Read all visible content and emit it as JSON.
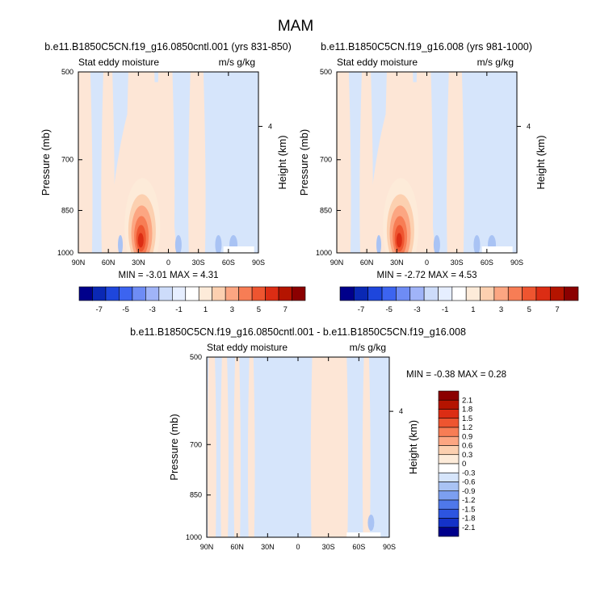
{
  "figure_title": "MAM",
  "chart_data": [
    {
      "type": "heatmap",
      "title": "b.e11.B1850C5CN.f19_g16.0850cntl.001 (yrs 831-850)",
      "left_subtitle": "Stat eddy moisture",
      "right_subtitle": "m/s g/kg",
      "xlabel": "",
      "ylabel": "Pressure (mb)",
      "ylabel_right": "Height (km)",
      "x_ticks": [
        "90N",
        "60N",
        "30N",
        "0",
        "30S",
        "60S",
        "90S"
      ],
      "y_ticks": [
        "500",
        "700",
        "850",
        "1000"
      ],
      "y_right_ticks": [
        "4"
      ],
      "ylim": [
        500,
        1000
      ],
      "stats": "MIN =  -3.01  MAX =   4.31",
      "peak": {
        "lat": 26,
        "pressure": 950,
        "value": 4.31
      },
      "colorbar_labels": [
        "-7",
        "-5",
        "-3",
        "-1",
        "1",
        "3",
        "5",
        "7"
      ]
    },
    {
      "type": "heatmap",
      "title": "b.e11.B1850C5CN.f19_g16.008 (yrs 981-1000)",
      "left_subtitle": "Stat eddy moisture",
      "right_subtitle": "m/s g/kg",
      "xlabel": "",
      "ylabel": "Pressure (mb)",
      "ylabel_right": "Height (km)",
      "x_ticks": [
        "90N",
        "60N",
        "30N",
        "0",
        "30S",
        "60S",
        "90S"
      ],
      "y_ticks": [
        "500",
        "700",
        "850",
        "1000"
      ],
      "y_right_ticks": [
        "4"
      ],
      "ylim": [
        500,
        1000
      ],
      "stats": "MIN =  -2.72  MAX =   4.53",
      "peak": {
        "lat": 26,
        "pressure": 950,
        "value": 4.53
      },
      "colorbar_labels": [
        "-7",
        "-5",
        "-3",
        "-1",
        "1",
        "3",
        "5",
        "7"
      ]
    },
    {
      "type": "heatmap",
      "title": "b.e11.B1850C5CN.f19_g16.0850cntl.001 - b.e11.B1850C5CN.f19_g16.008",
      "left_subtitle": "Stat eddy moisture",
      "right_subtitle": "m/s g/kg",
      "xlabel": "",
      "ylabel": "Pressure (mb)",
      "ylabel_right": "Height (km)",
      "x_ticks": [
        "90N",
        "60N",
        "30N",
        "0",
        "30S",
        "60S",
        "90S"
      ],
      "y_ticks": [
        "500",
        "700",
        "850",
        "1000"
      ],
      "y_right_ticks": [
        "4"
      ],
      "ylim": [
        500,
        1000
      ],
      "stats": "MIN =  -0.38  MAX =   0.28",
      "colorbar_labels": [
        "2.1",
        "1.8",
        "1.5",
        "1.2",
        "0.9",
        "0.6",
        "0.3",
        "0",
        "-0.3",
        "-0.6",
        "-0.9",
        "-1.2",
        "-1.5",
        "-1.8",
        "-2.1"
      ]
    }
  ],
  "colors": {
    "scale": [
      "#00008b",
      "#0a28b4",
      "#1e46dc",
      "#3c64f0",
      "#6e8cf5",
      "#a0b4f8",
      "#cddcfa",
      "#e6eeff",
      "#ffffff",
      "#fdebd9",
      "#fcd0b0",
      "#fca682",
      "#f77d55",
      "#ee5530",
      "#dc2d14",
      "#b41400",
      "#8b0000"
    ],
    "neg_light": "#d6e5fb",
    "pos_light": "#fde6d6"
  }
}
